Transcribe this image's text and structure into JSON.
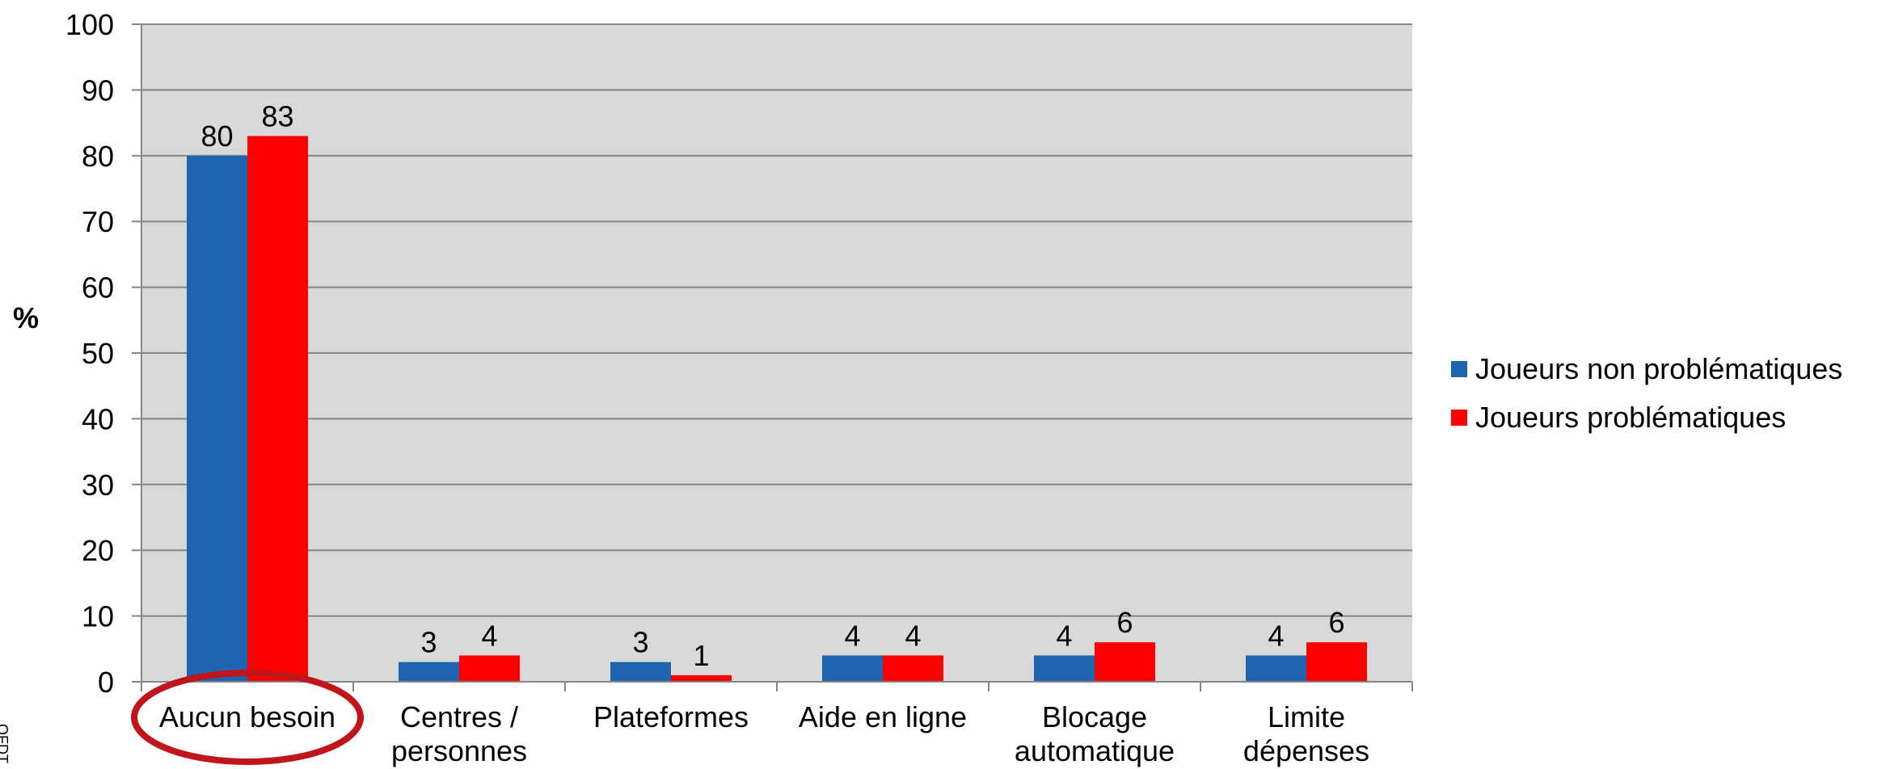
{
  "chart_data": {
    "type": "bar",
    "ylabel": "%",
    "ylim": [
      0,
      100
    ],
    "yticks": [
      "0",
      "10",
      "20",
      "30",
      "40",
      "50",
      "60",
      "70",
      "80",
      "90",
      "100"
    ],
    "grid": true,
    "legend_position": "right",
    "categories": [
      [
        "Aucun besoin"
      ],
      [
        "Centres /",
        "personnes"
      ],
      [
        "Plateformes"
      ],
      [
        "Aide en ligne"
      ],
      [
        "Blocage",
        "automatique"
      ],
      [
        "Limite",
        "dépenses"
      ]
    ],
    "series": [
      {
        "name": "Joueurs non problématiques",
        "color": "#1F64AE",
        "values": [
          80,
          3,
          3,
          4,
          4,
          4
        ]
      },
      {
        "name": "Joueurs problématiques",
        "color": "#FF0000",
        "values": [
          83,
          4,
          1,
          4,
          6,
          6
        ]
      }
    ],
    "highlighted_category": "Aucun besoin",
    "highlight_color": "#C0151B",
    "plot_background": "#D9D9D9"
  },
  "side_note": "OFDT"
}
